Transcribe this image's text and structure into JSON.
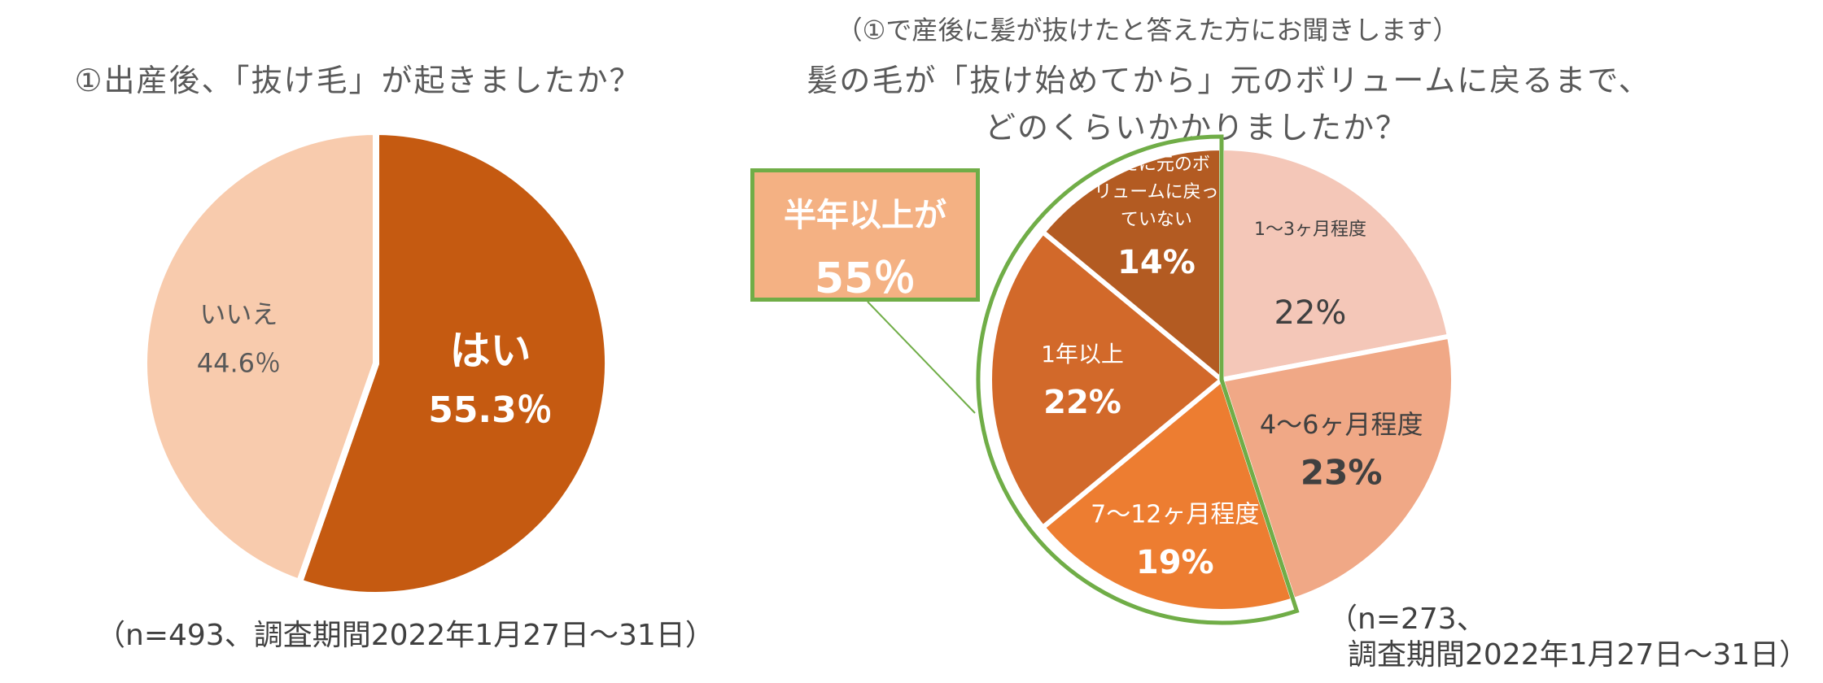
{
  "left_title": "①出産後、「抜け毛」が起きましたか？",
  "left_footnote": "（n=493、調査期間2022年1月27日～31日）",
  "right_note": "（①で産後に髪が抜けたと答えた方にお聞きします）",
  "right_title_line1": "髪の毛が「抜け始めてから」元のボリュームに戻るまで、",
  "right_title_line2": "どのくらいかかりましたか？",
  "right_footnote_line1": "（n=273、",
  "right_footnote_line2": "調査期間2022年1月27日～31日）",
  "callout": {
    "line1": "半年以上が",
    "line2": "55％"
  },
  "colors": {
    "yes": "#c55a11",
    "no": "#f8cbad",
    "r1": "#f4c7b8",
    "r2": "#f0a886",
    "r3": "#ed7d31",
    "r4": "#d2692a",
    "r5": "#b35b22",
    "highlight": "#70ad47"
  },
  "chart_data": [
    {
      "type": "pie",
      "title": "①出産後、「抜け毛」が起きましたか？",
      "slices": [
        {
          "label": "はい",
          "value": 55.3,
          "display": "55.3％",
          "color": "#c55a11"
        },
        {
          "label": "いいえ",
          "value": 44.6,
          "display": "44.6％",
          "color": "#f8cbad"
        }
      ]
    },
    {
      "type": "pie",
      "title": "髪の毛が「抜け始めてから」元のボリュームに戻るまで、どのくらいかかりましたか？",
      "slices": [
        {
          "label": "1～3ヶ月程度",
          "value": 22,
          "display": "22%",
          "color": "#f4c7b8"
        },
        {
          "label": "4～6ヶ月程度",
          "value": 23,
          "display": "23%",
          "color": "#f0a886"
        },
        {
          "label": "7～12ヶ月程度",
          "value": 19,
          "display": "19%",
          "color": "#ed7d31"
        },
        {
          "label": "1年以上",
          "value": 22,
          "display": "22%",
          "color": "#d2692a"
        },
        {
          "label_lines": [
            "未だに元のボ",
            "リュームに戻っ",
            "ていない"
          ],
          "value": 14,
          "display": "14%",
          "color": "#b35b22"
        }
      ]
    }
  ]
}
